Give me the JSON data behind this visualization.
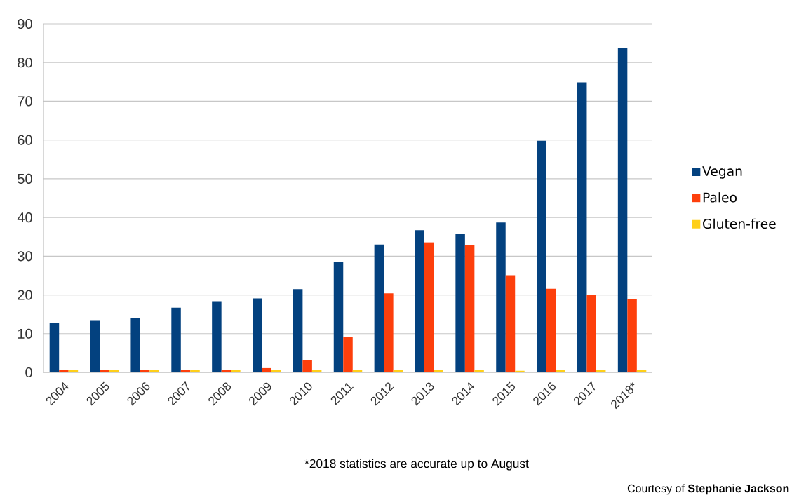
{
  "chart_data": {
    "type": "bar",
    "categories": [
      "2004",
      "2005",
      "2006",
      "2007",
      "2008",
      "2009",
      "2010",
      "2011",
      "2012",
      "2013",
      "2014",
      "2015",
      "2016",
      "2017",
      "2018*"
    ],
    "series": [
      {
        "name": "Vegan",
        "color": "#03417f",
        "values": [
          12.7,
          13.3,
          14.0,
          16.7,
          18.4,
          19.1,
          21.5,
          28.6,
          33.0,
          36.7,
          35.7,
          38.7,
          59.8,
          74.9,
          83.7
        ]
      },
      {
        "name": "Paleo",
        "color": "#fd3f0c",
        "values": [
          0.7,
          0.7,
          0.7,
          0.7,
          0.7,
          1.1,
          3.1,
          9.2,
          20.4,
          33.6,
          32.9,
          25.1,
          21.6,
          20.0,
          18.9
        ]
      },
      {
        "name": "Gluten-free",
        "color": "#fecf1a",
        "values": [
          0.7,
          0.7,
          0.7,
          0.7,
          0.7,
          0.7,
          0.7,
          0.7,
          0.7,
          0.7,
          0.7,
          0.4,
          0.7,
          0.7,
          0.7
        ]
      }
    ],
    "ylim": [
      0,
      90
    ],
    "yticks": [
      0,
      10,
      20,
      30,
      40,
      50,
      60,
      70,
      80,
      90
    ],
    "grid": "y",
    "legend": "right",
    "annotations": [
      "*2018 statistics are accurate up to August",
      "Courtesy of **Stephanie Jackson**"
    ]
  }
}
